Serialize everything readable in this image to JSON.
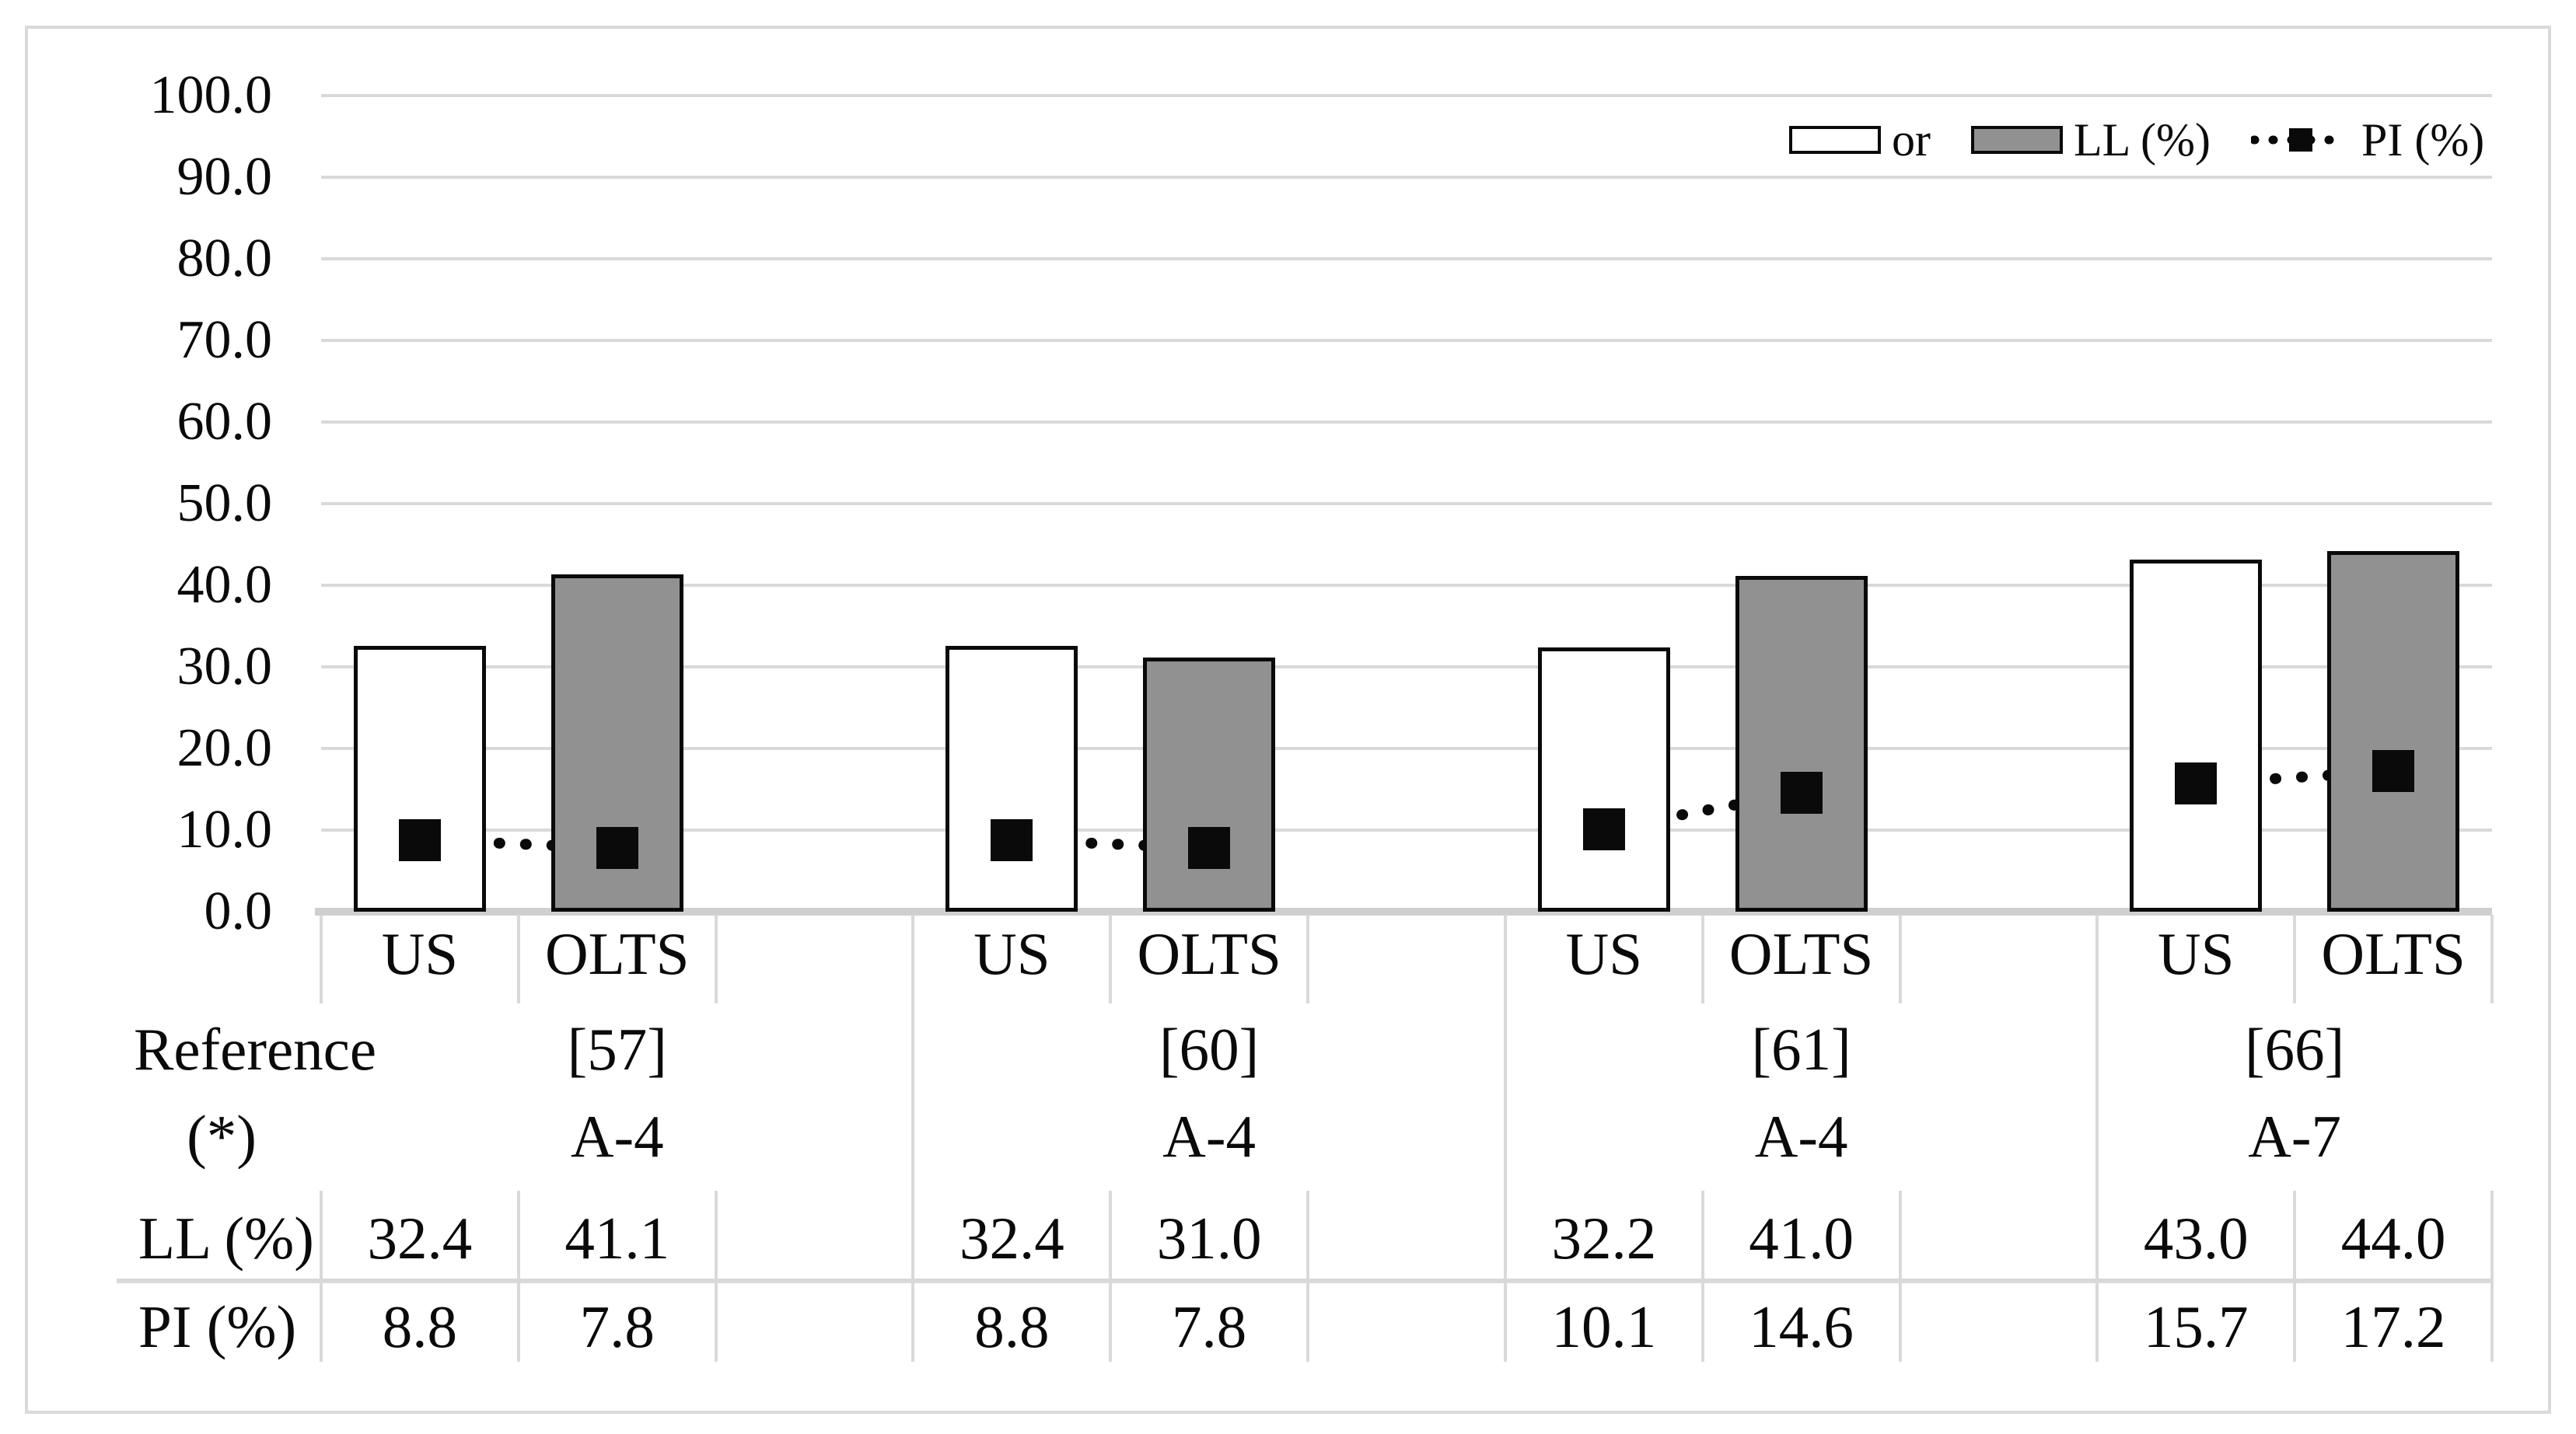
{
  "figure": {
    "description": "Grouped bar chart comparing US and OLTS soil test results with a data table",
    "background": "#ffffff",
    "border_color": "#d9d9d9"
  },
  "chart_data": {
    "type": "bar",
    "subtype": "grouped bars (LL %) with dotted-line square markers (PI %)",
    "categories": [
      "US",
      "OLTS"
    ],
    "y_axis": {
      "min": 0,
      "max": 100,
      "step": 10,
      "tick_labels": [
        "100.0",
        "90.0",
        "80.0",
        "70.0",
        "60.0",
        "50.0",
        "40.0",
        "30.0",
        "20.0",
        "10.0",
        "0.0"
      ]
    },
    "grid": true,
    "legend_position": "top-right inside plot",
    "legend": [
      {
        "label": "or",
        "swatch": "white-bar"
      },
      {
        "label": "LL (%)",
        "swatch": "gray-bar"
      },
      {
        "label": "PI (%)",
        "swatch": "dotted-marker"
      }
    ],
    "series": [
      {
        "name": "LL (%) US bars (white)",
        "values": [
          32.4,
          32.4,
          32.2,
          43.0
        ]
      },
      {
        "name": "LL (%) OLTS bars (gray)",
        "values": [
          41.1,
          31.0,
          41.0,
          44.0
        ]
      },
      {
        "name": "PI (%) US markers",
        "values": [
          8.8,
          8.8,
          10.1,
          15.7
        ]
      },
      {
        "name": "PI (%) OLTS markers",
        "values": [
          7.8,
          7.8,
          14.6,
          17.2
        ]
      }
    ],
    "groups": [
      {
        "reference": "[57]",
        "soil_class": "A-4",
        "ll": [
          "32.4",
          "41.1"
        ],
        "pi": [
          "8.8",
          "7.8"
        ]
      },
      {
        "reference": "[60]",
        "soil_class": "A-4",
        "ll": [
          "32.4",
          "31.0"
        ],
        "pi": [
          "8.8",
          "7.8"
        ]
      },
      {
        "reference": "[61]",
        "soil_class": "A-4",
        "ll": [
          "32.2",
          "41.0"
        ],
        "pi": [
          "10.1",
          "14.6"
        ]
      },
      {
        "reference": "[66]",
        "soil_class": "A-7",
        "ll": [
          "43.0",
          "44.0"
        ],
        "pi": [
          "15.7",
          "17.2"
        ]
      }
    ],
    "table_row_labels": [
      "Reference",
      "(*)",
      "LL (%)",
      "PI (%)"
    ],
    "colors": {
      "us_bar_fill": "#ffffff",
      "olts_bar_fill": "#919191",
      "bar_border": "#0a0a0a",
      "marker": "#0a0a0a",
      "gridline": "#d9d9d9",
      "axis_line": "#cfcfcf",
      "table_lines": "#d9d9d9"
    }
  }
}
